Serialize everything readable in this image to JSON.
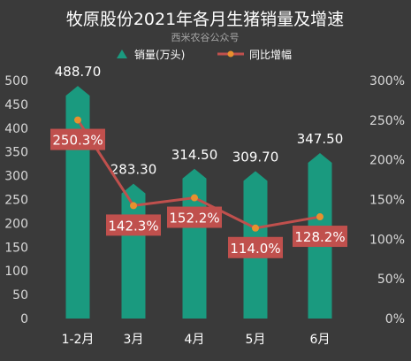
{
  "chart_data": {
    "type": "bar",
    "title": "牧原股份2021年各月生猪销量及增速",
    "subtitle": "西米农谷公众号",
    "categories": [
      "1-2月",
      "3月",
      "4月",
      "5月",
      "6月"
    ],
    "series": [
      {
        "name": "销量(万头)",
        "type": "bar",
        "axis": "left",
        "values": [
          488.7,
          283.3,
          314.5,
          309.7,
          347.5
        ],
        "labels": [
          "488.70",
          "283.30",
          "314.50",
          "309.70",
          "347.50"
        ],
        "color": "#1a9a7f"
      },
      {
        "name": "同比增幅",
        "type": "line",
        "axis": "right",
        "values": [
          250.3,
          142.3,
          152.2,
          114.0,
          128.2
        ],
        "labels": [
          "250.3%",
          "142.3%",
          "152.2%",
          "114.0%",
          "128.2%"
        ],
        "color": "#c0504d",
        "marker_color": "#e8902e"
      }
    ],
    "y_left": {
      "ylim": [
        0,
        500
      ],
      "ticks": [
        "0",
        "50",
        "100",
        "150",
        "200",
        "250",
        "300",
        "350",
        "400",
        "450",
        "500"
      ]
    },
    "y_right": {
      "ylim": [
        0,
        300
      ],
      "ticks": [
        "0%",
        "50%",
        "100%",
        "150%",
        "200%",
        "250%",
        "300%"
      ]
    },
    "legend_position": "top",
    "grid": false,
    "colors": {
      "background": "#3a3a3a",
      "text": "#ffffff",
      "axis_text": "#d9d9d9",
      "subtitle": "#a6a6a6",
      "label_box": "#c0504d"
    }
  }
}
